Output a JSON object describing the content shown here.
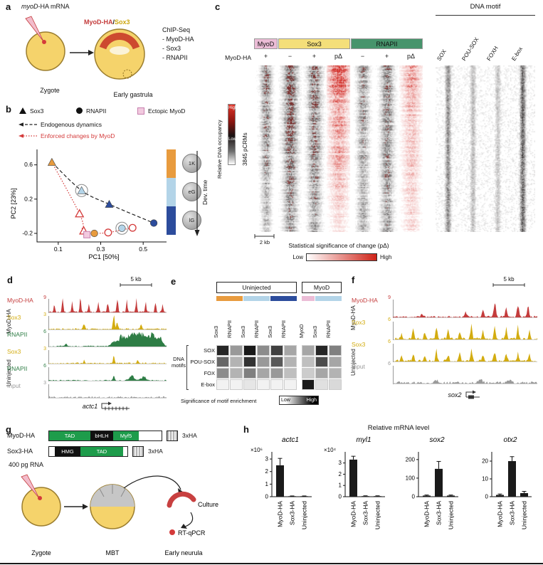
{
  "colors": {
    "embryo_yellow": "#F5D36B",
    "embryo_outline": "#9B7D2E",
    "crescent_red": "#CD4A2F",
    "myod_red": "#C43C3C",
    "sox3_yellow": "#CDA60F",
    "rnapii_green": "#2E7D45",
    "pink": "#EBBCD6",
    "orange": "#E89B3E",
    "lightblue": "#B3D4E8",
    "darkblue": "#2C4C9C",
    "ectopic_red": "#D43A3A",
    "construct_green": "#1E9C4B"
  },
  "panel_a": {
    "label": "a",
    "mrna_gene": "myoD",
    "mrna_rest": "-HA mRNA",
    "overlay_myod": "MyoD-HA",
    "overlay_sep": "/",
    "overlay_sox3": "Sox3",
    "chip_title": "ChIP-Seq",
    "chip_item_1": "- MyoD-HA",
    "chip_item_2": "- Sox3",
    "chip_item_3": "- RNAPII",
    "zygote": "Zygote",
    "gastrula": "Early gastrula"
  },
  "panel_b": {
    "label": "b",
    "legend_sox3": "Sox3",
    "legend_rnapii": "RNAPII",
    "legend_ectopic": "Ectopic MyoD",
    "arrow_endo": "Endogenous dynamics",
    "arrow_enforced": "Enforced changes by MyoD",
    "xlabel": "PC1 [50%]",
    "ylabel": "PC2 [23%]",
    "stage_1": "1K",
    "stage_2": "eG",
    "stage_3": "lG",
    "dev_time": "Dev. time"
  },
  "panel_c": {
    "label": "c",
    "dna_motif": "DNA motif",
    "group_myod": "MyoD",
    "group_sox3": "Sox3",
    "group_rnapii": "RNAPII",
    "row_label": "MyoD-HA",
    "signs": [
      "+",
      "−",
      "+",
      "pΔ",
      "−",
      "+",
      "pΔ"
    ],
    "occupancy_label": "Relative DNA occupancy",
    "occ_high": "High",
    "occ_low": "Low",
    "pcrms": "3845 pCRMs",
    "scale": "2 kb",
    "sig_label": "Statistical significance of change (pΔ)",
    "sig_low": "Low",
    "sig_high": "High",
    "motif_cols": [
      "SOX",
      "POU-SOX",
      "FOXH",
      "E-box"
    ]
  },
  "panel_d": {
    "label": "d",
    "scale": "5 kb",
    "group_1": "MyoD-HA",
    "group_2": "Uninjected",
    "tracks": [
      {
        "name": "MyoD-HA",
        "value": "9",
        "color": "#C43C3C"
      },
      {
        "name": "Sox3",
        "value": "3",
        "color": "#D3AC10"
      },
      {
        "name": "RNAPII",
        "value": "6",
        "color": "#2E7D45"
      },
      {
        "name": "Sox3",
        "value": "3",
        "color": "#D3AC10"
      },
      {
        "name": "RNAPII",
        "value": "6",
        "color": "#2E7D45"
      },
      {
        "name": "Input",
        "value": "3",
        "color": "#9A9A9A"
      }
    ],
    "gene": "actc1"
  },
  "panel_e": {
    "label": "e",
    "header_uninjected": "Uninjected",
    "header_myod": "MyoD",
    "col_labels_uninjected": [
      "Sox3",
      "RNAPII",
      "Sox3",
      "RNAPII",
      "Sox3",
      "RNAPII"
    ],
    "col_labels_myod": [
      "MyoD",
      "Sox3",
      "RNAPII"
    ],
    "row_group_1": "DNA",
    "row_group_2": "motifs",
    "row_labels": [
      "SOX",
      "POU-SOX",
      "FOX",
      "E-box"
    ],
    "caption": "Significance of motif enrichment",
    "low": "Low",
    "high": "High"
  },
  "panel_f": {
    "label": "f",
    "scale": "5 kb",
    "group_1": "MyoD-HA",
    "group_2": "Uninjected",
    "tracks": [
      {
        "name": "MyoD-HA",
        "value": "9",
        "color": "#C43C3C"
      },
      {
        "name": "Sox3",
        "value": "6",
        "color": "#D3AC10"
      },
      {
        "name": "Sox3",
        "value": "6",
        "color": "#D3AC10"
      },
      {
        "name": "Input",
        "value": "6",
        "color": "#9A9A9A"
      }
    ],
    "gene": "sox2"
  },
  "panel_g": {
    "label": "g",
    "construct_1_name": "MyoD-HA",
    "construct_1_segments": [
      "TAD",
      "bHLH",
      "Myf5"
    ],
    "construct_2_name": "Sox3-HA",
    "construct_2_segments": [
      "HMG",
      "TAD"
    ],
    "tag": "3xHA",
    "rna": "400 pg RNA",
    "culture": "Culture",
    "rtqpcr": "RT-qPCR",
    "zygote": "Zygote",
    "mbt": "MBT",
    "neurula": "Early neurula"
  },
  "panel_h": {
    "label": "h",
    "title": "Relative mRNA level"
  },
  "chart_data": [
    {
      "id": "pca",
      "type": "scatter",
      "xlabel": "PC1 [50%]",
      "ylabel": "PC2 [23%]",
      "xticks": [
        0.1,
        0.3,
        0.5
      ],
      "yticks": [
        0.6,
        0.2,
        -0.2
      ],
      "xlim": [
        0,
        0.62
      ],
      "ylim": [
        -0.3,
        0.78
      ],
      "series": [
        {
          "name": "Sox3 1K",
          "shape": "triangle",
          "color": "#E89B3E",
          "points": [
            [
              0.07,
              0.63
            ]
          ]
        },
        {
          "name": "Sox3 eG",
          "shape": "triangle",
          "color": "#B3D4E8",
          "ring": true,
          "points": [
            [
              0.21,
              0.3
            ]
          ]
        },
        {
          "name": "Sox3 lG",
          "shape": "triangle",
          "color": "#2C4C9C",
          "points": [
            [
              0.34,
              0.14
            ]
          ]
        },
        {
          "name": "RNAPII 1K",
          "shape": "circle",
          "color": "#E89B3E",
          "points": [
            [
              0.27,
              -0.2
            ]
          ]
        },
        {
          "name": "RNAPII eG",
          "shape": "circle",
          "color": "#B3D4E8",
          "ring": true,
          "points": [
            [
              0.4,
              -0.14
            ]
          ]
        },
        {
          "name": "RNAPII lG",
          "shape": "circle",
          "color": "#2C4C9C",
          "points": [
            [
              0.55,
              -0.08
            ]
          ]
        },
        {
          "name": "Ectopic MyoD Sox3",
          "shape": "triangle-open",
          "color": "#D43A3A",
          "points": [
            [
              0.2,
              0.03
            ],
            [
              0.22,
              -0.17
            ]
          ]
        },
        {
          "name": "Ectopic MyoD RNAPII",
          "shape": "circle-open",
          "color": "#D43A3A",
          "points": [
            [
              0.335,
              -0.19
            ],
            [
              0.45,
              -0.135
            ]
          ]
        },
        {
          "name": "Ectopic MyoD",
          "shape": "square",
          "color": "#F2CADF",
          "points": [
            [
              0.235,
              -0.215
            ]
          ]
        }
      ],
      "paths": [
        {
          "style": "dashed-black",
          "through": [
            [
              0.07,
              0.63
            ],
            [
              0.21,
              0.3
            ],
            [
              0.34,
              0.14
            ],
            [
              0.55,
              -0.08
            ]
          ]
        },
        {
          "style": "dotted-red",
          "through": [
            [
              0.07,
              0.63
            ],
            [
              0.2,
              0.03
            ],
            [
              0.22,
              -0.17
            ]
          ]
        },
        {
          "style": "dotted-red",
          "through": [
            [
              0.27,
              -0.2
            ],
            [
              0.335,
              -0.19
            ],
            [
              0.45,
              -0.135
            ]
          ]
        }
      ]
    },
    {
      "id": "motif_grid",
      "type": "heatmap",
      "rows": [
        "SOX",
        "POU-SOX",
        "FOX",
        "E-box"
      ],
      "cols": [
        "Sox3 1K",
        "RNAPII 1K",
        "Sox3 eG",
        "RNAPII eG",
        "Sox3 lG",
        "RNAPII lG",
        "MyoD",
        "Sox3 MyoD",
        "RNAPII MyoD"
      ],
      "values": [
        [
          0.85,
          0.4,
          0.9,
          0.45,
          0.75,
          0.35,
          0.35,
          0.85,
          0.5
        ],
        [
          0.6,
          0.3,
          0.8,
          0.4,
          0.65,
          0.3,
          0.25,
          0.7,
          0.35
        ],
        [
          0.45,
          0.3,
          0.5,
          0.35,
          0.4,
          0.25,
          0.2,
          0.35,
          0.3
        ],
        [
          0.05,
          0.05,
          0.1,
          0.05,
          0.05,
          0.05,
          0.9,
          0.12,
          0.15
        ]
      ],
      "scale_low": "Low",
      "scale_high": "High"
    },
    {
      "id": "qpcr",
      "type": "bar",
      "title": "Relative mRNA level",
      "categories": [
        "MyoD-HA",
        "Sox3-HA",
        "Uninjected"
      ],
      "charts": [
        {
          "gene": "actc1",
          "scale_label": "×10⁶",
          "yticks": [
            0,
            1,
            2,
            3
          ],
          "ymax": 3.4,
          "values": [
            2.5,
            0.04,
            0.04
          ],
          "errors": [
            0.55,
            0.02,
            0.02
          ]
        },
        {
          "gene": "myl1",
          "scale_label": "×10⁴",
          "yticks": [
            0,
            1,
            2,
            3
          ],
          "ymax": 3.8,
          "values": [
            3.3,
            0.05,
            0.05
          ],
          "errors": [
            0.3,
            0.03,
            0.03
          ]
        },
        {
          "gene": "sox2",
          "scale_label": "",
          "yticks": [
            0,
            100,
            200
          ],
          "ymax": 230,
          "values": [
            6,
            150,
            6
          ],
          "errors": [
            3,
            40,
            3
          ]
        },
        {
          "gene": "otx2",
          "scale_label": "",
          "yticks": [
            0,
            10,
            20
          ],
          "ymax": 24,
          "values": [
            1,
            20,
            2
          ],
          "errors": [
            0.5,
            2.5,
            1
          ]
        }
      ]
    }
  ]
}
